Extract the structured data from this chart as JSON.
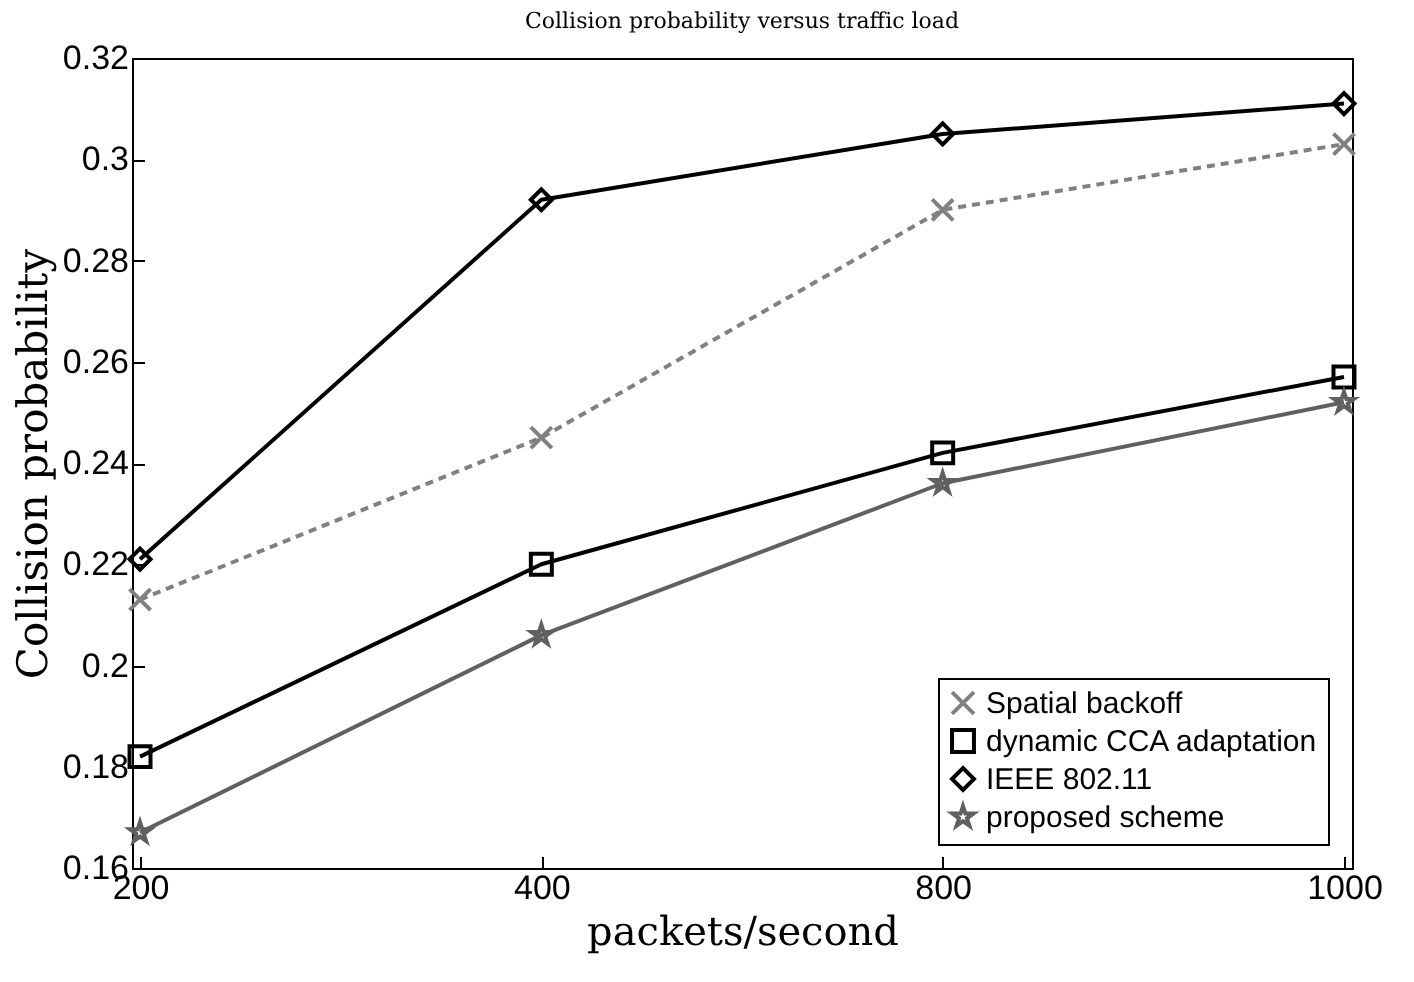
{
  "chart_data": {
    "type": "line",
    "title": "Collision probability versus traffic load",
    "xlabel": "packets/second",
    "ylabel": "Collision probability",
    "categories": [
      "200",
      "400",
      "800",
      "1000"
    ],
    "series": [
      {
        "name": "Spatial backoff",
        "color": "#808080",
        "marker": "cross",
        "line_style": "dashed",
        "values": [
          0.213,
          0.245,
          0.29,
          0.303
        ]
      },
      {
        "name": "dynamic CCA adaptation",
        "color": "#000000",
        "marker": "square",
        "line_style": "solid",
        "values": [
          0.182,
          0.22,
          0.242,
          0.257
        ]
      },
      {
        "name": "IEEE 802.11",
        "color": "#000000",
        "marker": "diamond",
        "line_style": "solid",
        "values": [
          0.221,
          0.292,
          0.305,
          0.311
        ]
      },
      {
        "name": "proposed scheme",
        "color": "#606060",
        "marker": "star",
        "line_style": "solid",
        "values": [
          0.167,
          0.206,
          0.236,
          0.252
        ]
      }
    ],
    "ylim": [
      0.16,
      0.32
    ],
    "yticks": [
      0.16,
      0.18,
      0.2,
      0.22,
      0.24,
      0.26,
      0.28,
      0.3,
      0.32
    ],
    "grid": false,
    "legend": "bottom right"
  }
}
